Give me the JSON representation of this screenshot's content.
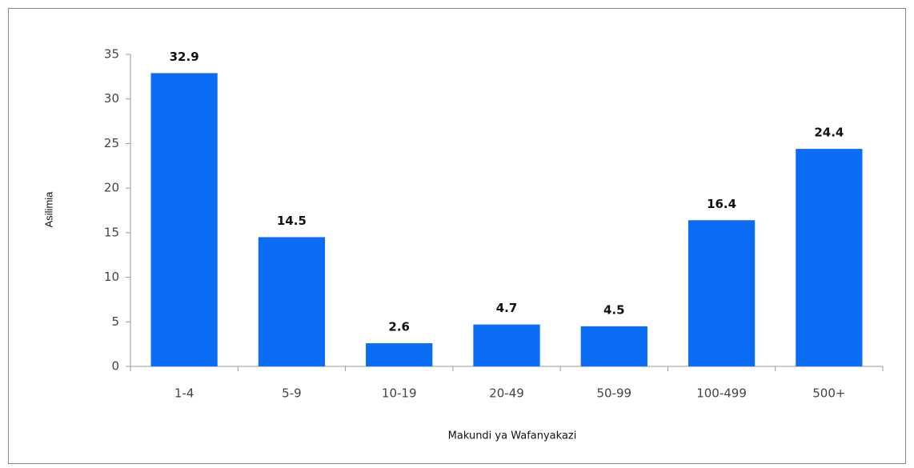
{
  "chart_data": {
    "type": "bar",
    "xlabel": "Makundi ya Wafanyakazi",
    "ylabel": "Asilimia",
    "categories": [
      "1-4",
      "5-9",
      "10-19",
      "20-49",
      "50-99",
      "100-499",
      "500+"
    ],
    "values": [
      32.9,
      14.5,
      2.6,
      4.7,
      4.5,
      16.4,
      24.4
    ],
    "color": "#0b6cf4",
    "ylim": [
      0,
      35
    ],
    "yticks": [
      0,
      5,
      10,
      15,
      20,
      25,
      30,
      35
    ],
    "grid": false
  }
}
